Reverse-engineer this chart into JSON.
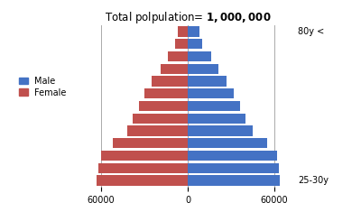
{
  "title_plain": "Total polpulation= ",
  "title_bold": "1,000,000",
  "male_values": [
    64000,
    63000,
    62000,
    55000,
    45000,
    40000,
    36000,
    32000,
    27000,
    21000,
    16000,
    10000,
    8000
  ],
  "female_values": [
    63000,
    62000,
    60000,
    52000,
    42000,
    38000,
    34000,
    30000,
    25000,
    19000,
    14000,
    9000,
    7000
  ],
  "male_color": "#4472C4",
  "female_color": "#C0504D",
  "xlim": 75000,
  "xticks": [
    -60000,
    0,
    60000
  ],
  "xticklabels": [
    "60000",
    "0",
    "60000"
  ],
  "legend_male": "Male",
  "legend_female": "Female",
  "label_top_right": "80y <",
  "label_bottom_right": "25-30y",
  "bg_color": "#FFFFFF",
  "grid_color": "#AAAAAA",
  "bar_height": 0.82
}
